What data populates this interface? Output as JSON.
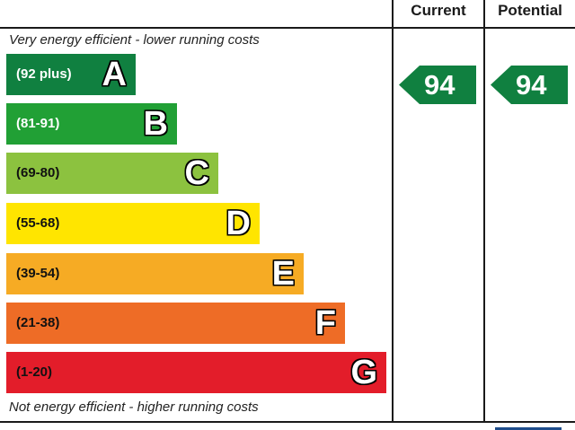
{
  "header": {
    "current_label": "Current",
    "potential_label": "Potential"
  },
  "captions": {
    "top": "Very energy efficient - lower running costs",
    "bottom": "Not energy efficient - higher running costs"
  },
  "chart_data": {
    "type": "bar",
    "categories": [
      "A",
      "B",
      "C",
      "D",
      "E",
      "F",
      "G"
    ],
    "ranges": [
      "(92 plus)",
      "(81-91)",
      "(69-80)",
      "(55-68)",
      "(39-54)",
      "(21-38)",
      "(1-20)"
    ],
    "colors": [
      "#108040",
      "#21a035",
      "#8cc23f",
      "#ffe500",
      "#f6ab24",
      "#ee6c26",
      "#e31d2a"
    ],
    "current": {
      "value": 94,
      "color": "#108040"
    },
    "potential": {
      "value": 94,
      "color": "#108040"
    }
  }
}
